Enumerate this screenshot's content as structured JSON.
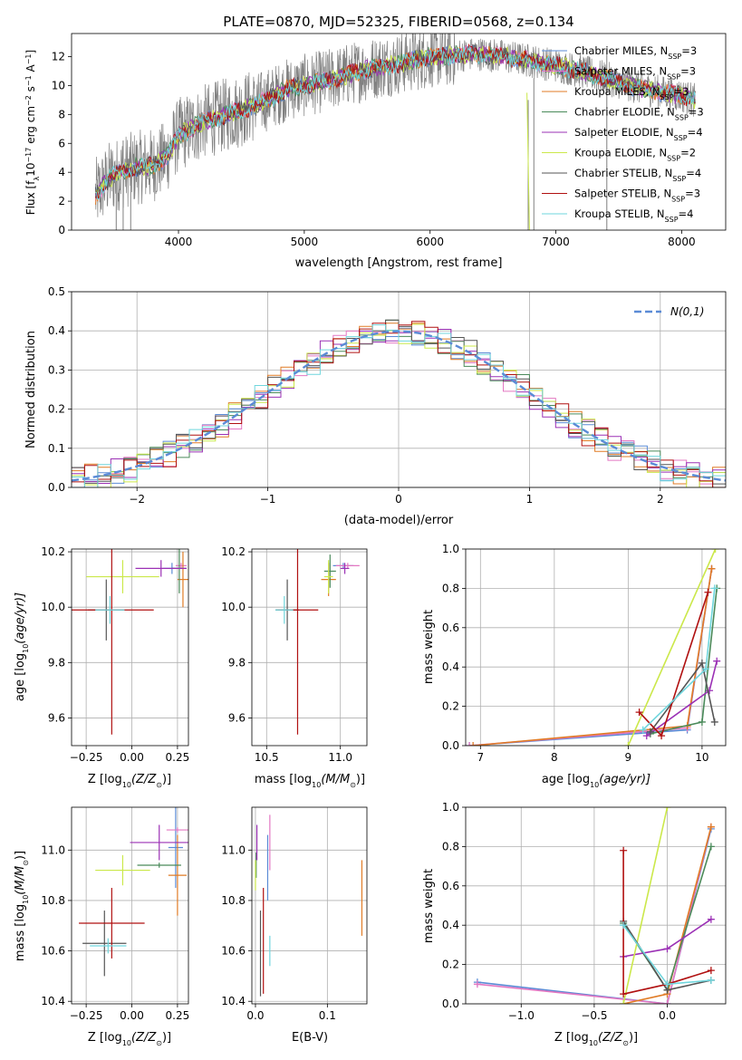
{
  "chart_data": [
    {
      "type": "line",
      "title": "PLATE=0870, MJD=52325, FIBERID=0568, z=0.134",
      "xlabel": "wavelength [Angstrom, rest frame]",
      "ylabel_parts": [
        "Flux [f",
        "λ",
        "10",
        "−17",
        " erg cm",
        "−2",
        " s",
        "−1",
        " A",
        "−1",
        "]"
      ],
      "xlim": [
        3150,
        8350
      ],
      "ylim": [
        0,
        13.6
      ],
      "xticks": [
        4000,
        5000,
        6000,
        7000,
        8000
      ],
      "yticks": [
        0,
        2,
        4,
        6,
        8,
        10,
        12
      ],
      "legend_position": "right",
      "series": [
        {
          "name": "Chabrier MILES, N",
          "sub": "SSP",
          "suffix": "=3",
          "color": "#5b8bd6"
        },
        {
          "name": "Salpeter MILES, N",
          "sub": "SSP",
          "suffix": "=3",
          "color": "#e377c2"
        },
        {
          "name": "Kroupa MILES, N",
          "sub": "SSP",
          "suffix": "=3",
          "color": "#e07b25"
        },
        {
          "name": "Chabrier ELODIE, N",
          "sub": "SSP",
          "suffix": "=3",
          "color": "#4a8a5a"
        },
        {
          "name": "Salpeter ELODIE, N",
          "sub": "SSP",
          "suffix": "=4",
          "color": "#9b30b5"
        },
        {
          "name": "Kroupa ELODIE, N",
          "sub": "SSP",
          "suffix": "=2",
          "color": "#cbe84a"
        },
        {
          "name": "Chabrier STELIB, N",
          "sub": "SSP",
          "suffix": "=4",
          "color": "#555555"
        },
        {
          "name": "Salpeter STELIB, N",
          "sub": "SSP",
          "suffix": "=3",
          "color": "#b01010"
        },
        {
          "name": "Kroupa STELIB, N",
          "sub": "SSP",
          "suffix": "=4",
          "color": "#6fd6dd"
        }
      ],
      "model_continuum": {
        "wavelength": [
          3340,
          3450,
          3550,
          3650,
          3800,
          3900,
          4000,
          4100,
          4200,
          4350,
          4500,
          4700,
          4860,
          5000,
          5200,
          5400,
          5600,
          5800,
          6000,
          6200,
          6400,
          6600,
          6800,
          7000,
          7200,
          7400,
          7600,
          7800,
          8000,
          8100
        ],
        "flux": [
          2.4,
          3.6,
          4.0,
          4.3,
          4.5,
          5.0,
          6.6,
          7.0,
          7.5,
          7.9,
          8.3,
          9.0,
          9.7,
          10.0,
          10.4,
          10.9,
          11.3,
          11.6,
          12.0,
          12.1,
          12.2,
          12.0,
          11.7,
          11.4,
          11.0,
          10.5,
          10.0,
          9.6,
          9.3,
          9.0
        ]
      }
    },
    {
      "type": "histogram",
      "xlabel": "(data-model)/error",
      "ylabel": "Normed distribution",
      "xlim": [
        -2.5,
        2.5
      ],
      "ylim": [
        0,
        0.5
      ],
      "xticks": [
        -2,
        -1,
        0,
        1,
        2
      ],
      "yticks": [
        0.0,
        0.1,
        0.2,
        0.3,
        0.4,
        0.5
      ],
      "bin_width": 0.1,
      "reference_curve": {
        "name": "N(0,1)",
        "mean": 0,
        "sd": 1,
        "color": "#5b8bd6"
      },
      "legend_position": "top-right",
      "series_variation_amplitude": 0.035
    },
    {
      "type": "scatter",
      "panel": "age vs Z",
      "xlabel_parts": [
        "Z [log",
        "10",
        "(Z/Z",
        "⊙",
        ")]"
      ],
      "ylabel_parts": [
        "age  [log",
        "10",
        "(age/yr)]"
      ],
      "xlim": [
        -0.33,
        0.31
      ],
      "ylim": [
        9.5,
        10.21
      ],
      "xticks": [
        -0.25,
        0.0,
        0.25
      ],
      "yticks": [
        9.6,
        9.8,
        10.0,
        10.2
      ],
      "points": [
        {
          "series": 0,
          "x": 0.22,
          "y": 10.14,
          "xerr": 0.05,
          "yerr": 0.02
        },
        {
          "series": 1,
          "x": 0.27,
          "y": 10.15,
          "xerr": 0.03,
          "yerr": 0.01
        },
        {
          "series": 2,
          "x": 0.28,
          "y": 10.1,
          "xerr": 0.03,
          "yerr": 0.1
        },
        {
          "series": 3,
          "x": 0.26,
          "y": 10.14,
          "xerr": 0.04,
          "yerr": 0.09
        },
        {
          "series": 4,
          "x": 0.16,
          "y": 10.14,
          "xerr": 0.14,
          "yerr": 0.03
        },
        {
          "series": 5,
          "x": -0.05,
          "y": 10.11,
          "xerr": 0.2,
          "yerr": 0.06
        },
        {
          "series": 6,
          "x": -0.14,
          "y": 9.99,
          "xerr": 0.1,
          "yerr": 0.11
        },
        {
          "series": 7,
          "x": -0.11,
          "y": 9.99,
          "xerr": 0.23,
          "yerr": 0.45
        },
        {
          "series": 8,
          "x": -0.12,
          "y": 9.99,
          "xerr": 0.08,
          "yerr": 0.05
        }
      ]
    },
    {
      "type": "scatter",
      "panel": "age vs mass",
      "xlabel_parts": [
        "mass [log",
        "10",
        "(M/M",
        "⊙",
        ")]"
      ],
      "ylabel": "",
      "xlim": [
        10.4,
        11.18
      ],
      "ylim": [
        9.5,
        10.21
      ],
      "xticks": [
        10.5,
        11.0
      ],
      "yticks": [
        9.6,
        9.8,
        10.0,
        10.2
      ],
      "points": [
        {
          "series": 0,
          "x": 11.02,
          "y": 10.15,
          "xerr": 0.07,
          "yerr": 0.01
        },
        {
          "series": 1,
          "x": 11.05,
          "y": 10.15,
          "xerr": 0.08,
          "yerr": 0.01
        },
        {
          "series": 2,
          "x": 10.92,
          "y": 10.1,
          "xerr": 0.05,
          "yerr": 0.06
        },
        {
          "series": 3,
          "x": 10.93,
          "y": 10.13,
          "xerr": 0.04,
          "yerr": 0.06
        },
        {
          "series": 4,
          "x": 11.03,
          "y": 10.14,
          "xerr": 0.03,
          "yerr": 0.02
        },
        {
          "series": 5,
          "x": 10.92,
          "y": 10.11,
          "xerr": 0.03,
          "yerr": 0.06
        },
        {
          "series": 6,
          "x": 10.64,
          "y": 9.99,
          "xerr": 0.08,
          "yerr": 0.11
        },
        {
          "series": 7,
          "x": 10.71,
          "y": 9.99,
          "xerr": 0.14,
          "yerr": 0.45
        },
        {
          "series": 8,
          "x": 10.62,
          "y": 9.99,
          "xerr": 0.06,
          "yerr": 0.05
        }
      ]
    },
    {
      "type": "line",
      "panel": "mass weight vs age",
      "xlabel_parts": [
        "age  [log",
        "10",
        "(age/yr)]"
      ],
      "ylabel": "mass weight",
      "xlim": [
        6.8,
        10.32
      ],
      "ylim": [
        0,
        1
      ],
      "xticks": [
        7,
        8,
        9,
        10
      ],
      "yticks": [
        0.0,
        0.2,
        0.4,
        0.6,
        0.8,
        1.0
      ],
      "series": [
        {
          "series": 0,
          "x": [
            6.85,
            9.8,
            10.13
          ],
          "y": [
            0.0,
            0.08,
            0.9
          ]
        },
        {
          "series": 1,
          "x": [
            6.85,
            9.8,
            10.13
          ],
          "y": [
            0.0,
            0.09,
            0.9
          ]
        },
        {
          "series": 2,
          "x": [
            6.9,
            9.8,
            10.13
          ],
          "y": [
            0.0,
            0.1,
            0.9
          ]
        },
        {
          "series": 3,
          "x": [
            9.3,
            10.0,
            10.2
          ],
          "y": [
            0.06,
            0.12,
            0.8
          ]
        },
        {
          "series": 4,
          "x": [
            9.25,
            10.1,
            10.2
          ],
          "y": [
            0.05,
            0.28,
            0.43
          ]
        },
        {
          "series": 5,
          "x": [
            9.0,
            10.18
          ],
          "y": [
            0.0,
            1.0
          ]
        },
        {
          "series": 6,
          "x": [
            9.3,
            10.0,
            10.17
          ],
          "y": [
            0.07,
            0.42,
            0.12
          ]
        },
        {
          "series": 7,
          "x": [
            9.15,
            9.45,
            10.08
          ],
          "y": [
            0.17,
            0.05,
            0.78
          ]
        },
        {
          "series": 8,
          "x": [
            9.2,
            10.05,
            10.17
          ],
          "y": [
            0.08,
            0.39,
            0.8
          ]
        }
      ]
    },
    {
      "type": "scatter",
      "panel": "mass vs Z",
      "xlabel_parts": [
        "Z [log",
        "10",
        "(Z/Z",
        "⊙",
        ")]"
      ],
      "ylabel_parts": [
        "mass [log",
        "10",
        "(M/M",
        "⊙",
        ")]"
      ],
      "xlim": [
        -0.33,
        0.31
      ],
      "ylim": [
        10.39,
        11.17
      ],
      "xticks": [
        -0.25,
        0.0,
        0.25
      ],
      "yticks": [
        10.4,
        10.6,
        10.8,
        11.0
      ],
      "points": [
        {
          "series": 0,
          "x": 0.24,
          "y": 11.01,
          "xerr": 0.04,
          "yerr": 0.16
        },
        {
          "series": 1,
          "x": 0.25,
          "y": 11.08,
          "xerr": 0.06,
          "yerr": 0.01
        },
        {
          "series": 2,
          "x": 0.25,
          "y": 10.9,
          "xerr": 0.05,
          "yerr": 0.16
        },
        {
          "series": 3,
          "x": 0.15,
          "y": 10.94,
          "xerr": 0.12,
          "yerr": 0.01
        },
        {
          "series": 4,
          "x": 0.15,
          "y": 11.03,
          "xerr": 0.16,
          "yerr": 0.07
        },
        {
          "series": 5,
          "x": -0.05,
          "y": 10.92,
          "xerr": 0.15,
          "yerr": 0.06
        },
        {
          "series": 6,
          "x": -0.15,
          "y": 10.63,
          "xerr": 0.12,
          "yerr": 0.13
        },
        {
          "series": 7,
          "x": -0.11,
          "y": 10.71,
          "xerr": 0.18,
          "yerr": 0.14
        },
        {
          "series": 8,
          "x": -0.13,
          "y": 10.62,
          "xerr": 0.1,
          "yerr": 0.03
        }
      ]
    },
    {
      "type": "scatter",
      "panel": "mass vs E(B-V)",
      "xlabel": "E(B-V)",
      "ylabel": "",
      "xlim": [
        -0.005,
        0.155
      ],
      "ylim": [
        10.39,
        11.17
      ],
      "xticks": [
        0.0,
        0.1
      ],
      "yticks": [
        10.4,
        10.6,
        10.8,
        11.0
      ],
      "points": [
        {
          "series": 0,
          "x": 0.017,
          "y": 10.93,
          "yerr": 0.13
        },
        {
          "series": 1,
          "x": 0.02,
          "y": 11.03,
          "yerr": 0.11
        },
        {
          "series": 2,
          "x": 0.148,
          "y": 10.81,
          "yerr": 0.15
        },
        {
          "series": 3,
          "x": 0.001,
          "y": 10.94,
          "yerr": 0.05
        },
        {
          "series": 4,
          "x": 0.002,
          "y": 11.03,
          "yerr": 0.07
        },
        {
          "series": 5,
          "x": 0.0,
          "y": 10.9,
          "yerr": 0.06
        },
        {
          "series": 6,
          "x": 0.007,
          "y": 10.59,
          "yerr": 0.17
        },
        {
          "series": 7,
          "x": 0.011,
          "y": 10.64,
          "yerr": 0.21
        },
        {
          "series": 8,
          "x": 0.02,
          "y": 10.6,
          "yerr": 0.06
        }
      ]
    },
    {
      "type": "line",
      "panel": "mass weight vs Z",
      "xlabel_parts": [
        "Z [log",
        "10",
        "(Z/Z",
        "⊙",
        ")]"
      ],
      "ylabel": "mass weight",
      "xlim": [
        -1.38,
        0.4
      ],
      "ylim": [
        0,
        1
      ],
      "xticks": [
        -1.0,
        -0.5,
        0.0
      ],
      "yticks": [
        0.0,
        0.2,
        0.4,
        0.6,
        0.8,
        1.0
      ],
      "series": [
        {
          "series": 0,
          "x": [
            -1.3,
            0.0,
            0.3
          ],
          "y": [
            0.11,
            0.0,
            0.89
          ]
        },
        {
          "series": 1,
          "x": [
            -1.3,
            0.0,
            0.3
          ],
          "y": [
            0.1,
            0.0,
            0.9
          ]
        },
        {
          "series": 2,
          "x": [
            -0.3,
            0.0,
            0.3
          ],
          "y": [
            0.0,
            0.05,
            0.9
          ]
        },
        {
          "series": 3,
          "x": [
            -0.3,
            0.0,
            0.3
          ],
          "y": [
            0.41,
            0.07,
            0.8
          ]
        },
        {
          "series": 4,
          "x": [
            -0.3,
            0.0,
            0.3
          ],
          "y": [
            0.24,
            0.28,
            0.43
          ]
        },
        {
          "series": 5,
          "x": [
            -0.3,
            0.0
          ],
          "y": [
            0.0,
            1.0
          ]
        },
        {
          "series": 6,
          "x": [
            -0.3,
            0.0,
            0.3
          ],
          "y": [
            0.42,
            0.07,
            0.12
          ]
        },
        {
          "series": 7,
          "x": [
            -0.3,
            -0.3,
            0.0,
            0.3
          ],
          "y": [
            0.78,
            0.05,
            0.1,
            0.17
          ]
        },
        {
          "series": 8,
          "x": [
            -0.3,
            0.0,
            0.3
          ],
          "y": [
            0.4,
            0.1,
            0.12
          ]
        }
      ]
    }
  ]
}
